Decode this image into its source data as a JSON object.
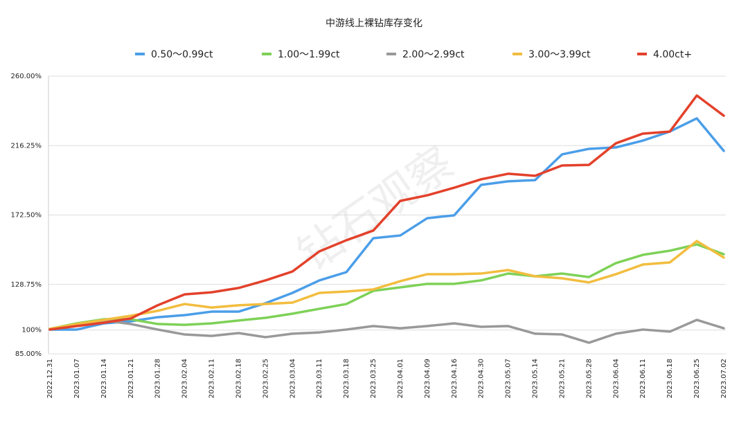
{
  "chart_data": {
    "type": "line",
    "title": "中游线上裸钻库存变化",
    "watermark": "钻石观察",
    "categories": [
      "2022.12.31",
      "2023.01.07",
      "2023.01.14",
      "2023.01.21",
      "2023.01.28",
      "2023.02.04",
      "2023.02.11",
      "2023.02.18",
      "2023.02.25",
      "2023.03.04",
      "2023.03.11",
      "2023.03.18",
      "2023.03.25",
      "2023.04.01",
      "2023.04.09",
      "2023.04.16",
      "2023.04.30",
      "2023.05.07",
      "2023.05.14",
      "2023.05.21",
      "2023.05.28",
      "2023.06.04",
      "2023.06.11",
      "2023.06.18",
      "2023.06.25",
      "2023.07.02"
    ],
    "series": [
      {
        "name": "0.50～0.99ct",
        "color": "#4b9ee8",
        "values": [
          100.3,
          100.3,
          104.2,
          105.5,
          108.1,
          109.4,
          111.6,
          111.6,
          116.9,
          123.4,
          131.3,
          136.5,
          157.9,
          159.6,
          170.5,
          172.3,
          191.5,
          193.7,
          194.5,
          210.7,
          214.2,
          215.1,
          219.4,
          225.1,
          233.4,
          212.9
        ]
      },
      {
        "name": "1.00～1.99ct",
        "color": "#7ed157",
        "values": [
          100.7,
          104.2,
          106.8,
          106.8,
          103.8,
          103.3,
          104.2,
          106.0,
          107.7,
          110.3,
          113.4,
          116.4,
          124.7,
          126.9,
          129.1,
          129.1,
          131.3,
          135.6,
          133.9,
          135.6,
          133.4,
          142.2,
          147.4,
          150.0,
          154.0,
          147.8
        ]
      },
      {
        "name": "2.00～2.99ct",
        "color": "#999999",
        "values": [
          100.7,
          103.3,
          106.0,
          103.8,
          100.3,
          97.2,
          96.3,
          98.1,
          95.5,
          97.7,
          98.5,
          100.3,
          102.5,
          101.1,
          102.5,
          104.2,
          102.0,
          102.5,
          97.7,
          97.2,
          92.0,
          97.7,
          100.3,
          99.0,
          106.4,
          101.1
        ]
      },
      {
        "name": "3.00～3.99ct",
        "color": "#f2bd3f",
        "values": [
          100.7,
          103.8,
          106.4,
          109.0,
          112.1,
          116.4,
          114.2,
          115.6,
          116.4,
          117.3,
          123.4,
          124.3,
          125.6,
          130.8,
          135.2,
          135.2,
          135.6,
          137.8,
          133.9,
          132.6,
          130.0,
          135.2,
          141.3,
          142.6,
          156.1,
          145.7
        ]
      },
      {
        "name": "4.00ct+",
        "color": "#e3412b",
        "values": [
          100.3,
          102.5,
          104.6,
          107.3,
          115.6,
          122.5,
          123.8,
          126.5,
          131.3,
          136.9,
          149.6,
          156.6,
          162.7,
          181.4,
          184.9,
          189.7,
          195.0,
          198.5,
          197.2,
          203.7,
          204.1,
          217.7,
          223.8,
          225.1,
          247.8,
          235.1
        ]
      }
    ],
    "ylim": [
      85,
      260
    ],
    "yticks": [
      {
        "value": 85,
        "label": "85.00%"
      },
      {
        "value": 100,
        "label": "100%"
      },
      {
        "value": 128.75,
        "label": "128.75%"
      },
      {
        "value": 172.5,
        "label": "172.50%"
      },
      {
        "value": 216.25,
        "label": "216.25%"
      },
      {
        "value": 260,
        "label": "260.00%"
      }
    ],
    "grid": true,
    "legend": "top"
  }
}
